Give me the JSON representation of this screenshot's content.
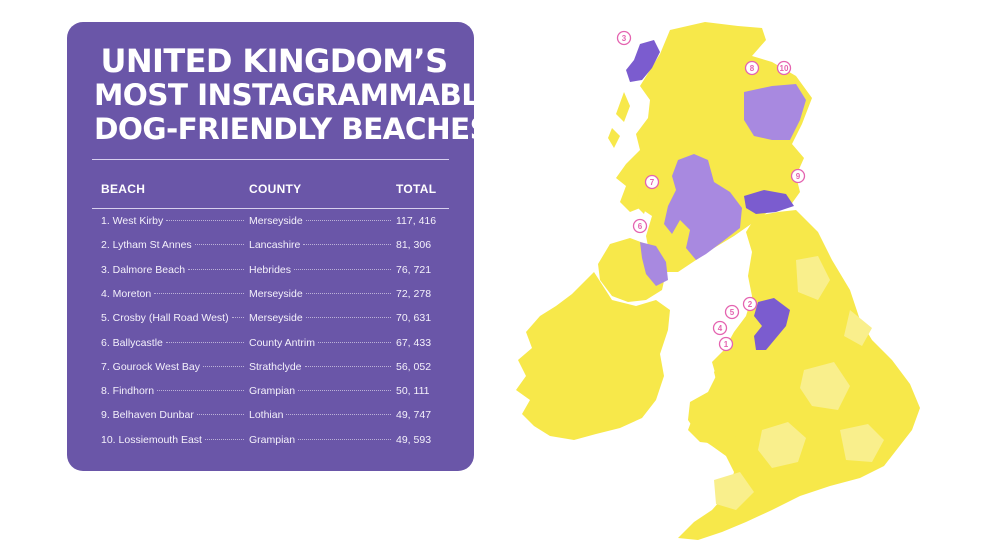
{
  "title": {
    "line1": "UNITED KINGDOM’S",
    "line2": "MOST INSTAGRAMMABLE",
    "line3": "DOG-FRIENDLY BEACHES"
  },
  "table": {
    "headers": {
      "beach": "BEACH",
      "county": "COUNTY",
      "total": "TOTAL"
    },
    "rows": [
      {
        "beach": "1. West Kirby",
        "county": "Merseyside",
        "total": "117, 416"
      },
      {
        "beach": "2. Lytham St Annes",
        "county": "Lancashire",
        "total": "81, 306"
      },
      {
        "beach": "3. Dalmore Beach",
        "county": "Hebrides",
        "total": "76, 721"
      },
      {
        "beach": "4. Moreton",
        "county": "Merseyside",
        "total": "72, 278"
      },
      {
        "beach": "5. Crosby (Hall Road West)",
        "county": "Merseyside",
        "total": "70, 631"
      },
      {
        "beach": "6. Ballycastle",
        "county": "County Antrim",
        "total": "67, 433"
      },
      {
        "beach": "7. Gourock West Bay",
        "county": "Strathclyde",
        "total": "56, 052"
      },
      {
        "beach": "8. Findhorn",
        "county": "Grampian",
        "total": "50, 111"
      },
      {
        "beach": "9. Belhaven Dunbar",
        "county": "Lothian",
        "total": "49, 747"
      },
      {
        "beach": "10. Lossiemouth East",
        "county": "Grampian",
        "total": "49, 593"
      }
    ]
  },
  "map": {
    "markers": [
      "1",
      "2",
      "3",
      "4",
      "5",
      "6",
      "7",
      "8",
      "9",
      "10"
    ]
  },
  "colors": {
    "panel": "#6a56a8",
    "map_yellow": "#f7e84a",
    "map_light_yellow": "#f9ef8c",
    "highlight_purple": "#7b5ccf",
    "highlight_light_purple": "#a889e0",
    "marker": "#e463b0"
  }
}
